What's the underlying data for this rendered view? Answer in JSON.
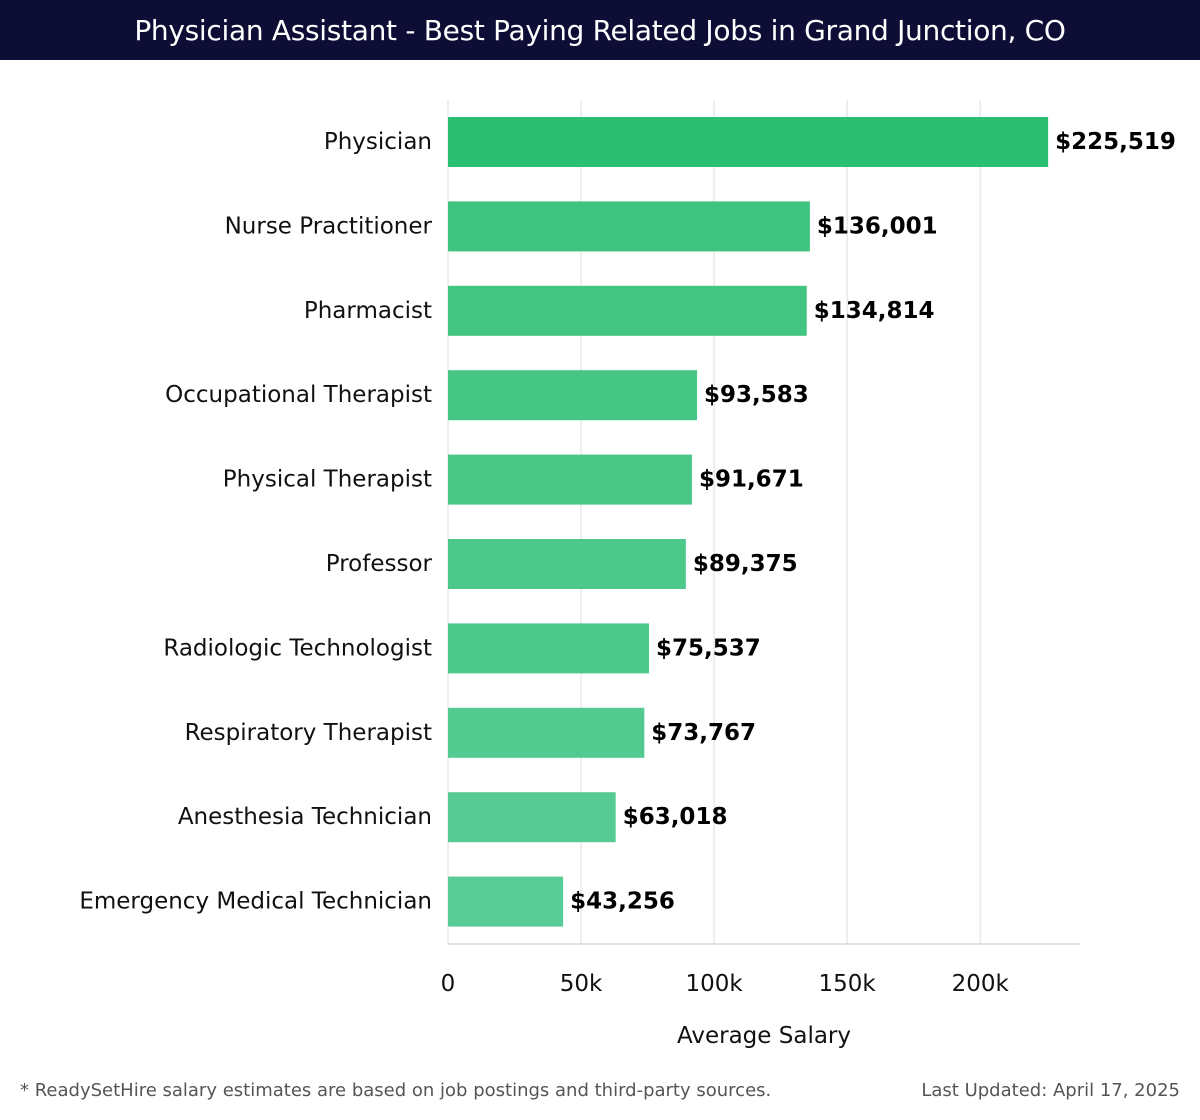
{
  "header": {
    "title": "Physician Assistant - Best Paying Related Jobs in Grand Junction, CO"
  },
  "chart_data": {
    "type": "bar",
    "orientation": "horizontal",
    "title": "Physician Assistant - Best Paying Related Jobs in Grand Junction, CO",
    "xlabel": "Average Salary",
    "ylabel": "",
    "xlim": [
      0,
      237500
    ],
    "xticks": [
      0,
      50000,
      100000,
      150000,
      200000
    ],
    "xtick_labels": [
      "0",
      "50k",
      "100k",
      "150k",
      "200k"
    ],
    "grid": "vertical",
    "categories": [
      "Physician",
      "Nurse Practitioner",
      "Pharmacist",
      "Occupational Therapist",
      "Physical Therapist",
      "Professor",
      "Radiologic Technologist",
      "Respiratory Therapist",
      "Anesthesia Technician",
      "Emergency Medical Technician"
    ],
    "values": [
      225519,
      136001,
      134814,
      93583,
      91671,
      89375,
      75537,
      73767,
      63018,
      43256
    ],
    "value_labels": [
      "$225,519",
      "$136,001",
      "$134,814",
      "$93,583",
      "$91,671",
      "$89,375",
      "$75,537",
      "$73,767",
      "$63,018",
      "$43,256"
    ],
    "colors": {
      "top_bar": "#2bbf74",
      "bar_gradient_start": "#3ec47e",
      "bar_gradient_end": "#58cc96",
      "grid": "#e3e3e3",
      "axis": "#d0d0d0"
    }
  },
  "footer": {
    "note": "* ReadySetHire salary estimates are based on job postings and third-party sources.",
    "updated": "Last Updated: April 17, 2025"
  }
}
